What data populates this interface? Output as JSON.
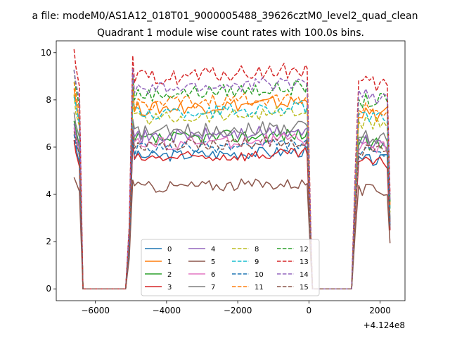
{
  "chart_data": {
    "type": "line",
    "suptitle": "a file: modeM0/AS1A12_018T01_9000005488_39626cztM0_level2_quad_clean",
    "title": "Quadrant 1 module wise count rates with 100.0s bins.",
    "xlabel": "",
    "ylabel": "",
    "x_offset_label": "+4.124e8",
    "xlim": [
      -7100,
      2700
    ],
    "ylim": [
      -0.5,
      10.5
    ],
    "xticks": [
      -6000,
      -4000,
      -2000,
      0,
      2000
    ],
    "xtick_labels": [
      "−6000",
      "−4000",
      "−2000",
      "0",
      "2000"
    ],
    "yticks": [
      0,
      2,
      4,
      6,
      8,
      10
    ],
    "ytick_labels": [
      "0",
      "2",
      "4",
      "6",
      "8",
      "10"
    ],
    "grid": false,
    "legend": {
      "placement": "lower center",
      "columns": 4
    },
    "segments": [
      {
        "x0": -6600,
        "x1": -6450,
        "decay_to": -6300
      },
      {
        "x0": -5000,
        "x1": 0,
        "rise_from": -5200,
        "decay_to": 100
      },
      {
        "x0": 1400,
        "x1": 2300,
        "rise_from": 1200
      }
    ],
    "zero_runs": [
      [
        -6350,
        -5150
      ],
      [
        100,
        1200
      ]
    ],
    "series": [
      {
        "name": "0",
        "color": "#1f77b4",
        "dash": "solid",
        "level": 5.6,
        "noise": 0.25
      },
      {
        "name": "1",
        "color": "#ff7f0e",
        "dash": "solid",
        "level": 7.6,
        "noise": 0.3
      },
      {
        "name": "2",
        "color": "#2ca02c",
        "dash": "solid",
        "level": 6.3,
        "noise": 0.3
      },
      {
        "name": "3",
        "color": "#d62728",
        "dash": "solid",
        "level": 5.5,
        "noise": 0.25
      },
      {
        "name": "4",
        "color": "#9467bd",
        "dash": "solid",
        "level": 6.4,
        "noise": 0.3
      },
      {
        "name": "5",
        "color": "#8c564b",
        "dash": "solid",
        "level": 4.3,
        "noise": 0.25
      },
      {
        "name": "6",
        "color": "#e377c2",
        "dash": "solid",
        "level": 6.1,
        "noise": 0.3
      },
      {
        "name": "7",
        "color": "#7f7f7f",
        "dash": "solid",
        "level": 6.6,
        "noise": 0.3
      },
      {
        "name": "8",
        "color": "#bcbd22",
        "dash": "dashed",
        "level": 7.2,
        "noise": 0.3
      },
      {
        "name": "9",
        "color": "#17becf",
        "dash": "dashed",
        "level": 7.4,
        "noise": 0.3
      },
      {
        "name": "10",
        "color": "#1f77b4",
        "dash": "dashed",
        "level": 5.9,
        "noise": 0.25
      },
      {
        "name": "11",
        "color": "#ff7f0e",
        "dash": "dashed",
        "level": 7.8,
        "noise": 0.3
      },
      {
        "name": "12",
        "color": "#2ca02c",
        "dash": "dashed",
        "level": 8.2,
        "noise": 0.3
      },
      {
        "name": "13",
        "color": "#d62728",
        "dash": "dashed",
        "level": 8.9,
        "noise": 0.35
      },
      {
        "name": "14",
        "color": "#9467bd",
        "dash": "dashed",
        "level": 8.4,
        "noise": 0.3
      },
      {
        "name": "15",
        "color": "#8c564b",
        "dash": "dashed",
        "level": 6.0,
        "noise": 0.25
      }
    ]
  }
}
